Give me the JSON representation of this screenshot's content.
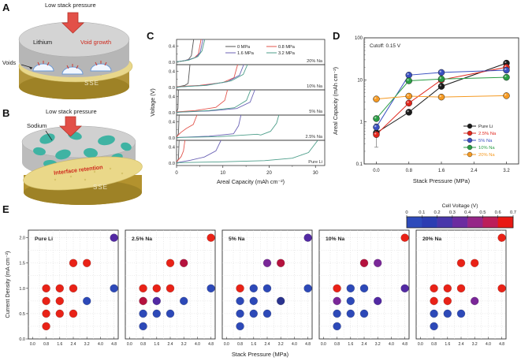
{
  "panels": {
    "a": {
      "label": "A",
      "pressure": "Low stack pressure",
      "material": "Lithium",
      "void_growth": "Void growth",
      "voids": "Voids",
      "sse": "SSE"
    },
    "b": {
      "label": "B",
      "pressure": "Low stack pressure",
      "material": "Sodium",
      "interface": "Interface retention",
      "sse": "SSE"
    },
    "c": {
      "label": "C"
    },
    "d": {
      "label": "D"
    },
    "e": {
      "label": "E"
    }
  },
  "chart_data": [
    {
      "panel": "C",
      "type": "line",
      "xlabel": "Areal Capacity (mAh cm⁻²)",
      "ylabel": "Voltage (V)",
      "xlim": [
        0,
        32
      ],
      "xticks": [
        0,
        10,
        20,
        30
      ],
      "xticks_minor": [
        5,
        15,
        25
      ],
      "ylim": [
        -0.06,
        0.56
      ],
      "yticks": [
        0.0,
        0.4
      ],
      "ytick_minor": 0.2,
      "legend_position": "top-right-first-subplot",
      "pressures": [
        {
          "name": "0 MPa",
          "color": "#555555"
        },
        {
          "name": "0.8 MPa",
          "color": "#e2564e"
        },
        {
          "name": "1.6 MPa",
          "color": "#6b63b5"
        },
        {
          "name": "3.2 MPa",
          "color": "#4d9e8a"
        }
      ],
      "subplots": [
        {
          "label": "20% Na",
          "curves": [
            [
              [
                0,
                0.01
              ],
              [
                1.5,
                0.03
              ],
              [
                2.6,
                0.07
              ],
              [
                3.2,
                0.16
              ],
              [
                3.7,
                0.56
              ]
            ],
            [
              [
                0,
                0.01
              ],
              [
                2,
                0.04
              ],
              [
                3.8,
                0.1
              ],
              [
                4.7,
                0.2
              ],
              [
                5.3,
                0.56
              ]
            ],
            [
              [
                0,
                0.01
              ],
              [
                2.3,
                0.05
              ],
              [
                4.2,
                0.12
              ],
              [
                5.1,
                0.24
              ],
              [
                5.7,
                0.56
              ]
            ],
            [
              [
                0,
                0.01
              ],
              [
                2.6,
                0.05
              ],
              [
                4.6,
                0.14
              ],
              [
                5.5,
                0.28
              ],
              [
                6.1,
                0.56
              ]
            ]
          ]
        },
        {
          "label": "10% Na",
          "curves": [
            [
              [
                0,
                0.01
              ],
              [
                1.8,
                0.05
              ],
              [
                2.5,
                0.1
              ],
              [
                2.9,
                0.56
              ]
            ],
            [
              [
                0,
                0.02
              ],
              [
                5,
                0.05
              ],
              [
                10,
                0.12
              ],
              [
                12.4,
                0.24
              ],
              [
                13.2,
                0.56
              ]
            ],
            [
              [
                0,
                0.01
              ],
              [
                6,
                0.05
              ],
              [
                11,
                0.14
              ],
              [
                13.6,
                0.3
              ],
              [
                14.5,
                0.56
              ]
            ],
            [
              [
                0,
                0.01
              ],
              [
                6.5,
                0.05
              ],
              [
                11.8,
                0.16
              ],
              [
                14.4,
                0.32
              ],
              [
                15.3,
                0.56
              ]
            ]
          ]
        },
        {
          "label": "5% Na",
          "curves": [
            [
              [
                0,
                0.01
              ],
              [
                0.3,
                0.1
              ],
              [
                0.4,
                0.56
              ]
            ],
            [
              [
                0,
                0.02
              ],
              [
                4,
                0.05
              ],
              [
                8.5,
                0.13
              ],
              [
                10.4,
                0.3
              ],
              [
                11,
                0.56
              ]
            ],
            [
              [
                0,
                0.01
              ],
              [
                7,
                0.04
              ],
              [
                13,
                0.1
              ],
              [
                15.9,
                0.26
              ],
              [
                16.9,
                0.56
              ]
            ],
            [
              [
                0,
                0.01
              ],
              [
                7,
                0.05
              ],
              [
                12.5,
                0.12
              ],
              [
                15.1,
                0.3
              ],
              [
                16,
                0.56
              ]
            ]
          ]
        },
        {
          "label": "2.5% Na",
          "curves": [
            [
              [
                0,
                0.01
              ],
              [
                0.4,
                0.1
              ],
              [
                0.55,
                0.56
              ]
            ],
            [
              [
                0,
                0.03
              ],
              [
                0.9,
                0.13
              ],
              [
                2.1,
                0.23
              ],
              [
                3.6,
                0.33
              ],
              [
                4.4,
                0.56
              ]
            ],
            [
              [
                0,
                0.01
              ],
              [
                7,
                0.04
              ],
              [
                12.3,
                0.1
              ],
              [
                13.4,
                0.3
              ],
              [
                13.9,
                0.56
              ]
            ],
            [
              [
                0,
                0.01
              ],
              [
                9,
                0.03
              ],
              [
                17.4,
                0.09
              ],
              [
                18.2,
                0.07
              ],
              [
                20.3,
                0.16
              ],
              [
                21.6,
                0.36
              ],
              [
                22.1,
                0.56
              ]
            ]
          ]
        },
        {
          "label": "Pure Li",
          "curves": [
            [
              [
                0,
                0.01
              ],
              [
                0.4,
                0.1
              ],
              [
                0.55,
                0.56
              ]
            ],
            [
              [
                0,
                0.03
              ],
              [
                1,
                0.16
              ],
              [
                1.5,
                0.3
              ],
              [
                1.8,
                0.56
              ]
            ],
            [
              [
                0,
                0.01
              ],
              [
                3,
                0.07
              ],
              [
                6,
                0.15
              ],
              [
                8.5,
                0.3
              ],
              [
                9.6,
                0.56
              ]
            ],
            [
              [
                0,
                0.01
              ],
              [
                9,
                0.03
              ],
              [
                19,
                0.06
              ],
              [
                25,
                0.12
              ],
              [
                28.5,
                0.26
              ],
              [
                30.5,
                0.56
              ]
            ]
          ]
        }
      ]
    },
    {
      "panel": "D",
      "type": "line",
      "yscale": "log",
      "annotation": "Cutoff: 0.15 V",
      "xlabel": "Stack Pressure (MPa)",
      "ylabel": "Areal Capacity (mAh cm⁻²)",
      "xticks": [
        0.0,
        0.8,
        1.6,
        2.4,
        3.2
      ],
      "yticks": [
        0.1,
        1,
        10,
        100
      ],
      "ylim": [
        0.1,
        100
      ],
      "x": [
        0.0,
        0.8,
        1.6,
        3.2
      ],
      "series": [
        {
          "name": "Pure Li",
          "color": "#1a1a1a",
          "values": [
            0.55,
            1.7,
            7,
            25
          ],
          "error_low": 0.25,
          "error_high": 0.9
        },
        {
          "name": "2.5% Na",
          "color": "#e0251b",
          "values": [
            0.5,
            2.8,
            10,
            20
          ]
        },
        {
          "name": "5% Na",
          "color": "#3a50c0",
          "values": [
            0.75,
            13,
            15,
            17
          ]
        },
        {
          "name": "10% Na",
          "color": "#2a9d44",
          "values": [
            1.2,
            9.5,
            10.5,
            11.5
          ]
        },
        {
          "name": "20% Na",
          "color": "#f59a23",
          "values": [
            3.5,
            4.1,
            3.9,
            4.2
          ]
        }
      ],
      "legend_position": "bottom-right"
    },
    {
      "panel": "E",
      "type": "scatter",
      "xlabel": "Stack Pressure (MPa)",
      "ylabel": "Current Density (mA cm⁻²)",
      "xticks": [
        0.0,
        0.8,
        1.6,
        2.4,
        3.2,
        4.0,
        4.8
      ],
      "yticks": [
        0.0,
        0.5,
        1.0,
        1.5,
        2.0
      ],
      "grid": "dotted",
      "palette": {
        "red": "#e92217",
        "blue": "#2d49b8",
        "navy": "#2a338f",
        "purple": "#5229a3",
        "violet": "#7a2798",
        "crimson": "#b5123e"
      },
      "colorbar": {
        "label": "Cell Voltage (V)",
        "ticks": [
          "0",
          "0.1",
          "0.2",
          "0.3",
          "0.4",
          "0.5",
          "0.6",
          "0.7"
        ],
        "colors": [
          "#2e4bbb",
          "#2c3db2",
          "#4836aa",
          "#6b2ba0",
          "#952687",
          "#bc1e5a",
          "#e81813"
        ]
      },
      "subplots": [
        {
          "label": "Pure Li",
          "points": [
            [
              0.8,
              0.25,
              "red"
            ],
            [
              0.8,
              0.5,
              "red"
            ],
            [
              0.8,
              0.75,
              "red"
            ],
            [
              0.8,
              1.0,
              "red"
            ],
            [
              1.6,
              0.5,
              "red"
            ],
            [
              1.6,
              0.75,
              "red"
            ],
            [
              1.6,
              1.0,
              "red"
            ],
            [
              2.4,
              0.5,
              "red"
            ],
            [
              2.4,
              1.0,
              "red"
            ],
            [
              2.4,
              1.5,
              "red"
            ],
            [
              3.2,
              0.75,
              "blue"
            ],
            [
              3.2,
              1.5,
              "red"
            ],
            [
              4.8,
              1.0,
              "blue"
            ],
            [
              4.8,
              2.0,
              "purple"
            ]
          ]
        },
        {
          "label": "2.5% Na",
          "points": [
            [
              0.8,
              0.25,
              "blue"
            ],
            [
              0.8,
              0.5,
              "blue"
            ],
            [
              0.8,
              0.75,
              "crimson"
            ],
            [
              0.8,
              1.0,
              "red"
            ],
            [
              1.6,
              0.5,
              "blue"
            ],
            [
              1.6,
              0.75,
              "purple"
            ],
            [
              1.6,
              1.0,
              "red"
            ],
            [
              2.4,
              0.5,
              "blue"
            ],
            [
              2.4,
              1.0,
              "red"
            ],
            [
              2.4,
              1.5,
              "red"
            ],
            [
              3.2,
              0.75,
              "blue"
            ],
            [
              3.2,
              1.5,
              "crimson"
            ],
            [
              4.8,
              1.0,
              "blue"
            ],
            [
              4.8,
              2.0,
              "red"
            ]
          ]
        },
        {
          "label": "5% Na",
          "points": [
            [
              0.8,
              0.25,
              "blue"
            ],
            [
              0.8,
              0.5,
              "blue"
            ],
            [
              0.8,
              0.75,
              "blue"
            ],
            [
              0.8,
              1.0,
              "red"
            ],
            [
              1.6,
              0.5,
              "blue"
            ],
            [
              1.6,
              0.75,
              "blue"
            ],
            [
              1.6,
              1.0,
              "blue"
            ],
            [
              2.4,
              0.5,
              "blue"
            ],
            [
              2.4,
              1.0,
              "blue"
            ],
            [
              2.4,
              1.5,
              "violet"
            ],
            [
              3.2,
              0.75,
              "navy"
            ],
            [
              3.2,
              1.5,
              "crimson"
            ],
            [
              4.8,
              1.0,
              "blue"
            ],
            [
              4.8,
              2.0,
              "purple"
            ]
          ]
        },
        {
          "label": "10% Na",
          "points": [
            [
              0.8,
              0.25,
              "blue"
            ],
            [
              0.8,
              0.5,
              "blue"
            ],
            [
              0.8,
              0.75,
              "violet"
            ],
            [
              0.8,
              1.0,
              "red"
            ],
            [
              1.6,
              0.5,
              "blue"
            ],
            [
              1.6,
              0.75,
              "blue"
            ],
            [
              1.6,
              1.0,
              "blue"
            ],
            [
              2.4,
              0.5,
              "blue"
            ],
            [
              2.4,
              1.0,
              "blue"
            ],
            [
              2.4,
              1.5,
              "crimson"
            ],
            [
              3.2,
              0.75,
              "purple"
            ],
            [
              3.2,
              1.5,
              "violet"
            ],
            [
              4.8,
              1.0,
              "purple"
            ],
            [
              4.8,
              2.0,
              "red"
            ]
          ]
        },
        {
          "label": "20% Na",
          "points": [
            [
              0.8,
              0.25,
              "blue"
            ],
            [
              0.8,
              0.5,
              "blue"
            ],
            [
              0.8,
              0.75,
              "red"
            ],
            [
              0.8,
              1.0,
              "red"
            ],
            [
              1.6,
              0.5,
              "blue"
            ],
            [
              1.6,
              0.75,
              "red"
            ],
            [
              1.6,
              1.0,
              "red"
            ],
            [
              2.4,
              0.5,
              "blue"
            ],
            [
              2.4,
              1.0,
              "red"
            ],
            [
              2.4,
              1.5,
              "red"
            ],
            [
              3.2,
              0.75,
              "violet"
            ],
            [
              3.2,
              1.5,
              "red"
            ],
            [
              4.8,
              1.0,
              "red"
            ],
            [
              4.8,
              2.0,
              "red"
            ]
          ]
        }
      ]
    }
  ]
}
